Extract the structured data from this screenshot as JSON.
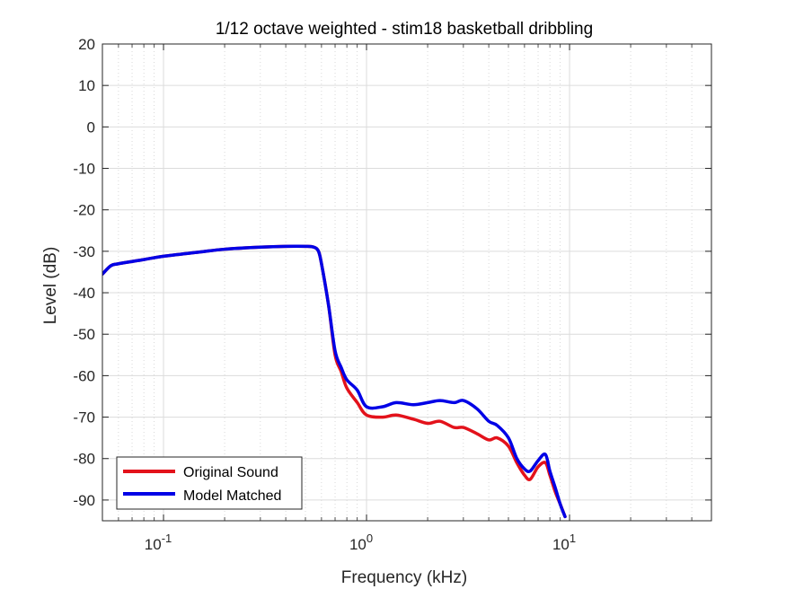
{
  "chart_data": {
    "type": "line",
    "title": "1/12 octave weighted - stim18 basketball dribbling",
    "xlabel": "Frequency (kHz)",
    "ylabel": "Level (dB)",
    "xscale": "log",
    "xlim": [
      0.05,
      50
    ],
    "ylim": [
      -95,
      20
    ],
    "xticks": [
      {
        "value": 0.1,
        "base": "10",
        "exp": "-1"
      },
      {
        "value": 1,
        "base": "10",
        "exp": "0"
      },
      {
        "value": 10,
        "base": "10",
        "exp": "1"
      }
    ],
    "yticks": [
      20,
      10,
      0,
      -10,
      -20,
      -30,
      -40,
      -50,
      -60,
      -70,
      -80,
      -90
    ],
    "grid": true,
    "minor_grid": true,
    "legend_position": "bottom-left",
    "series": [
      {
        "name": "Original Sound",
        "color": "#e3121b",
        "x": [
          0.05,
          0.055,
          0.06,
          0.08,
          0.1,
          0.15,
          0.2,
          0.3,
          0.4,
          0.5,
          0.55,
          0.58,
          0.6,
          0.65,
          0.7,
          0.75,
          0.8,
          0.9,
          1.0,
          1.2,
          1.4,
          1.7,
          2.0,
          2.3,
          2.7,
          3.0,
          3.5,
          4.0,
          4.4,
          5.0,
          5.5,
          6.0,
          6.4,
          7.0,
          7.6,
          8.0,
          8.5,
          9.0,
          9.5
        ],
        "y": [
          -35.5,
          -33.5,
          -33,
          -32,
          -31.2,
          -30.2,
          -29.5,
          -29,
          -28.8,
          -28.8,
          -29,
          -30,
          -33,
          -43,
          -55,
          -59,
          -63,
          -66.5,
          -69.5,
          -70,
          -69.5,
          -70.5,
          -71.5,
          -71,
          -72.5,
          -72.5,
          -74,
          -75.5,
          -75,
          -77,
          -81,
          -84,
          -85,
          -82,
          -81,
          -84,
          -88,
          -91,
          -94
        ]
      },
      {
        "name": "Model Matched",
        "color": "#0000e6",
        "x": [
          0.05,
          0.055,
          0.06,
          0.08,
          0.1,
          0.15,
          0.2,
          0.3,
          0.4,
          0.5,
          0.55,
          0.58,
          0.6,
          0.65,
          0.7,
          0.75,
          0.8,
          0.9,
          1.0,
          1.2,
          1.4,
          1.7,
          2.0,
          2.3,
          2.7,
          3.0,
          3.5,
          4.0,
          4.4,
          5.0,
          5.5,
          6.0,
          6.4,
          7.0,
          7.6,
          8.0,
          8.5,
          9.0,
          9.5
        ],
        "y": [
          -35.5,
          -33.5,
          -33,
          -32,
          -31.2,
          -30.2,
          -29.5,
          -29,
          -28.8,
          -28.8,
          -29,
          -30,
          -33,
          -43,
          -54,
          -58,
          -61,
          -63.5,
          -67.5,
          -67.5,
          -66.5,
          -67,
          -66.5,
          -66,
          -66.5,
          -66,
          -68,
          -71,
          -72,
          -75,
          -80,
          -82.5,
          -83,
          -80.5,
          -79,
          -83,
          -87,
          -91,
          -94
        ]
      }
    ]
  }
}
